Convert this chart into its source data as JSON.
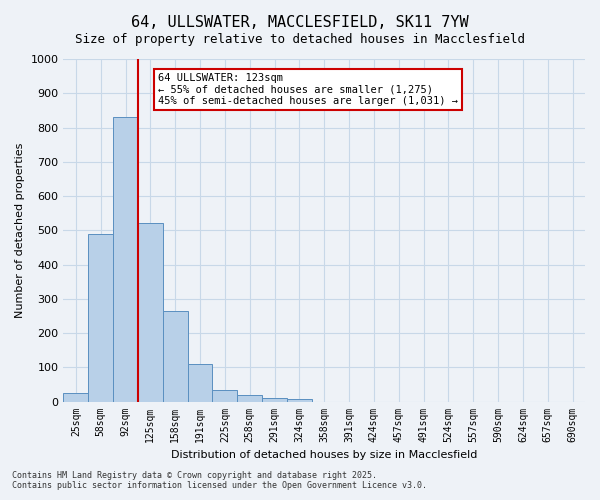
{
  "title_line1": "64, ULLSWATER, MACCLESFIELD, SK11 7YW",
  "title_line2": "Size of property relative to detached houses in Macclesfield",
  "xlabel": "Distribution of detached houses by size in Macclesfield",
  "ylabel": "Number of detached properties",
  "categories": [
    "25sqm",
    "58sqm",
    "92sqm",
    "125sqm",
    "158sqm",
    "191sqm",
    "225sqm",
    "258sqm",
    "291sqm",
    "324sqm",
    "358sqm",
    "391sqm",
    "424sqm",
    "457sqm",
    "491sqm",
    "524sqm",
    "557sqm",
    "590sqm",
    "624sqm",
    "657sqm",
    "690sqm"
  ],
  "values": [
    25,
    490,
    830,
    520,
    265,
    110,
    35,
    20,
    10,
    8,
    0,
    0,
    0,
    0,
    0,
    0,
    0,
    0,
    0,
    0,
    0
  ],
  "bar_color": "#b8d0e8",
  "bar_edge_color": "#5a8fc0",
  "grid_color": "#c8d8e8",
  "background_color": "#eef2f7",
  "ylim": [
    0,
    1000
  ],
  "yticks": [
    0,
    100,
    200,
    300,
    400,
    500,
    600,
    700,
    800,
    900,
    1000
  ],
  "red_line_index": 3,
  "annotation_text": "64 ULLSWATER: 123sqm\n← 55% of detached houses are smaller (1,275)\n45% of semi-detached houses are larger (1,031) →",
  "annotation_box_color": "#ffffff",
  "annotation_edge_color": "#cc0000",
  "footer_line1": "Contains HM Land Registry data © Crown copyright and database right 2025.",
  "footer_line2": "Contains public sector information licensed under the Open Government Licence v3.0."
}
